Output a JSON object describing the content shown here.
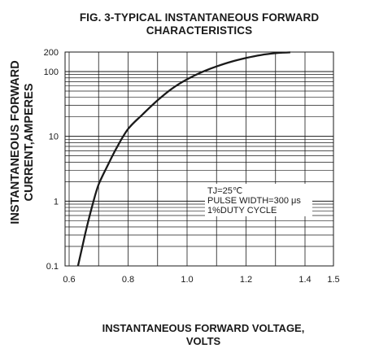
{
  "chart_data": {
    "type": "line",
    "title": "FIG. 3-TYPICAL INSTANTANEOUS FORWARD CHARACTERISTICS",
    "title_lines": [
      "FIG. 3-TYPICAL INSTANTANEOUS FORWARD",
      "CHARACTERISTICS"
    ],
    "xlabel": "INSTANTANEOUS FORWARD VOLTAGE, VOLTS",
    "xlabel_lines": [
      "INSTANTANEOUS FORWARD VOLTAGE,",
      "VOLTS"
    ],
    "ylabel": "INSTANTANEOUS FORWARD CURRENT,AMPERES",
    "ylabel_lines": [
      "INSTANTANEOUS FORWARD",
      "CURRENT,AMPERES"
    ],
    "xlim": [
      0.6,
      1.4
    ],
    "ylim": [
      0.1,
      200
    ],
    "yscale": "log",
    "grid": true,
    "x_ticks": [
      {
        "value": 0.6,
        "label": "0.6"
      },
      {
        "value": 0.8,
        "label": "0.8"
      },
      {
        "value": 1.0,
        "label": "1.0"
      },
      {
        "value": 1.2,
        "label": "1.2"
      },
      {
        "value": 1.4,
        "label": "1.4"
      },
      {
        "value": 1.5,
        "label": "1.5"
      }
    ],
    "y_ticks": [
      {
        "value": 0.1,
        "label": "0.1"
      },
      {
        "value": 1,
        "label": "1"
      },
      {
        "value": 10,
        "label": "10"
      },
      {
        "value": 100,
        "label": "100"
      },
      {
        "value": 200,
        "label": "200"
      }
    ],
    "annotation": [
      "TJ=25℃",
      "PULSE WIDTH=300 μs",
      "1%DUTY CYCLE"
    ],
    "series": [
      {
        "x": [
          0.63,
          0.645,
          0.66,
          0.68,
          0.7,
          0.73,
          0.76,
          0.8,
          0.85,
          0.9,
          0.95,
          1.0,
          1.05,
          1.1,
          1.15,
          1.2,
          1.25,
          1.3,
          1.35
        ],
        "y": [
          0.1,
          0.2,
          0.4,
          0.9,
          1.8,
          3.5,
          6.5,
          13,
          22,
          36,
          55,
          76,
          98,
          120,
          142,
          162,
          180,
          192,
          198
        ]
      }
    ]
  }
}
